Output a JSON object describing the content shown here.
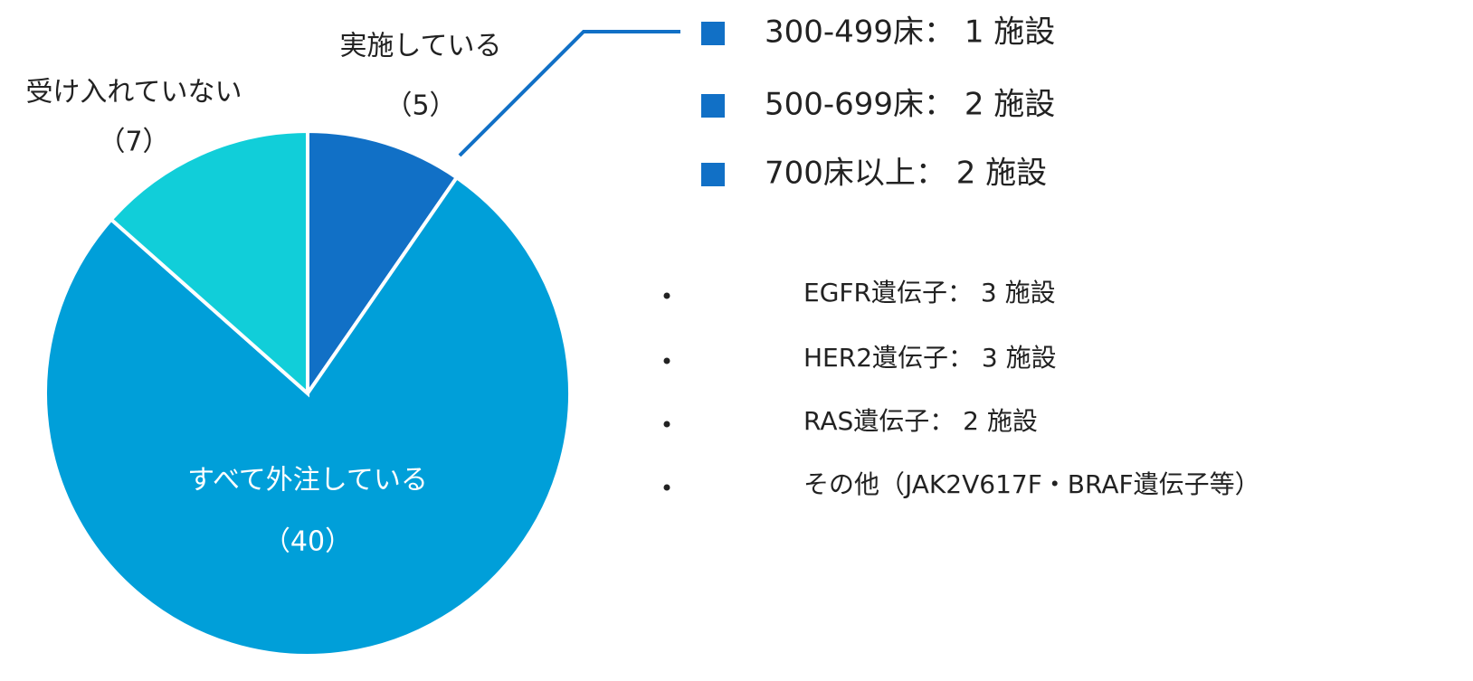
{
  "chart_data": {
    "type": "pie",
    "categories": [
      "実施している",
      "すべて外注している",
      "受け入れていない"
    ],
    "values": [
      5,
      40,
      7
    ],
    "value_labels": [
      "（5）",
      "（40）",
      "（7）"
    ],
    "colors": [
      "#1170c6",
      "#009fd9",
      "#11ced9"
    ],
    "size_breakdown": [
      "300-499床： 1 施設",
      "500-699床： 2 施設",
      "700床以上： 2 施設"
    ],
    "size_marker_color": "#1170c6",
    "gene_breakdown": [
      "EGFR遺伝子： 3 施設",
      "HER2遺伝子： 3 施設",
      "RAS遺伝子： 2 施設",
      "その他（JAK2V617F・BRAF遺伝子等）"
    ]
  }
}
